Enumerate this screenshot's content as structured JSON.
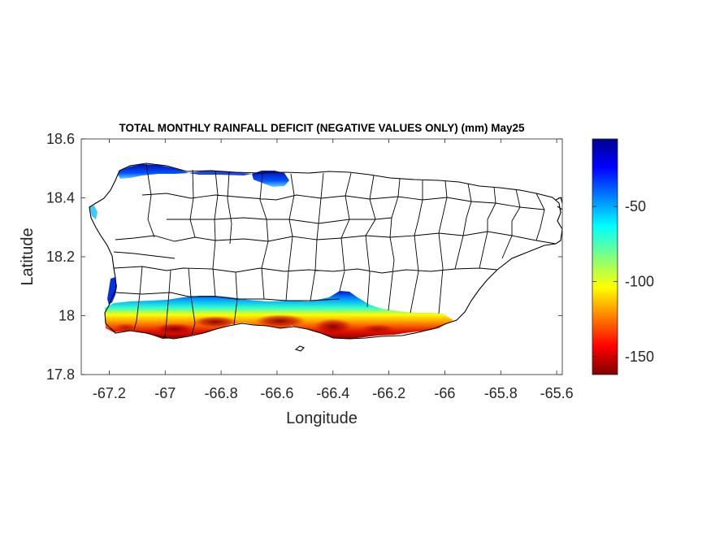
{
  "chart_data": {
    "type": "heatmap",
    "title": "TOTAL MONTHLY RAINFALL DEFICIT (NEGATIVE VALUES ONLY) (mm) May25",
    "xlabel": "Longitude",
    "ylabel": "Latitude",
    "xlim": [
      -67.3,
      -65.58
    ],
    "ylim": [
      17.8,
      18.6
    ],
    "xticks": [
      -67.2,
      -67,
      -66.8,
      -66.6,
      -66.4,
      -66.2,
      -66,
      -65.8,
      -65.6
    ],
    "xtick_labels": [
      "-67.2",
      "-67",
      "-66.8",
      "-66.6",
      "-66.4",
      "-66.2",
      "-66",
      "-65.8",
      "-65.6"
    ],
    "yticks": [
      17.8,
      18,
      18.2,
      18.4,
      18.6
    ],
    "ytick_labels": [
      "17.8",
      "18",
      "18.2",
      "18.4",
      "18.6"
    ],
    "colorbar": {
      "colormap": "jet (reversed: dark red = most negative)",
      "range": [
        -162,
        -5
      ],
      "ticks": [
        -50,
        -100,
        -150
      ],
      "tick_labels": [
        "-50",
        "-100",
        "-150"
      ]
    },
    "regions": [
      {
        "name": "South coast deficit band",
        "lon_range": [
          -67.2,
          -65.95
        ],
        "lat_range": [
          17.94,
          18.07
        ],
        "min_value": -160
      },
      {
        "name": "Northwest coast patch",
        "lon_range": [
          -67.14,
          -66.98
        ],
        "lat_range": [
          18.49,
          18.52
        ],
        "min_value": -25
      },
      {
        "name": "North coast patch",
        "lon_range": [
          -66.72,
          -66.6
        ],
        "lat_range": [
          18.45,
          18.5
        ],
        "min_value": -20
      },
      {
        "name": "West coast patch",
        "lon_range": [
          -67.27,
          -67.24
        ],
        "lat_range": [
          18.35,
          18.38
        ],
        "min_value": -35
      }
    ]
  }
}
